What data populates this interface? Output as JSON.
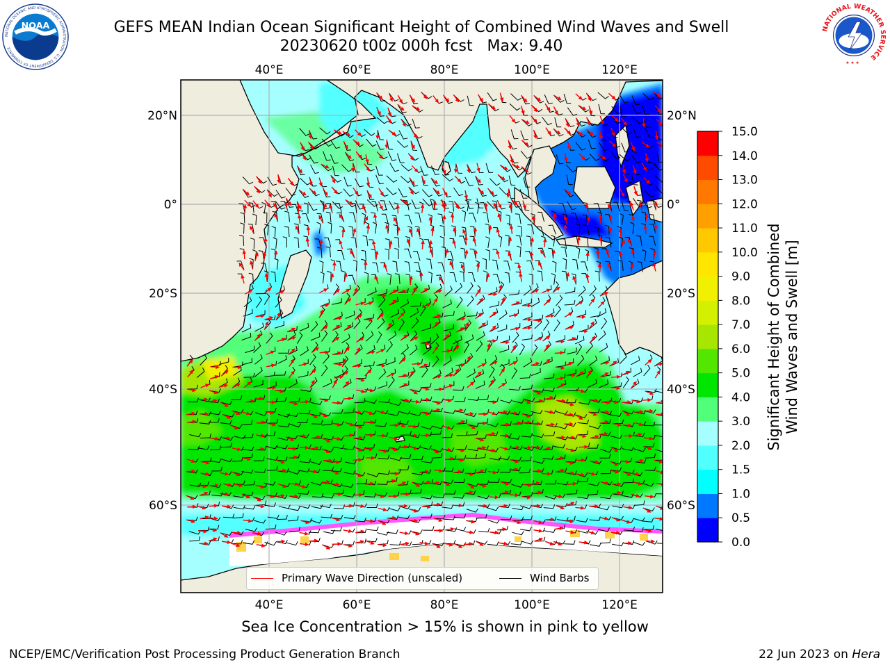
{
  "title": {
    "line1": "GEFS MEAN Indian Ocean Significant Height of Combined Wind Waves and Swell",
    "line2": "20230620 t00z 000h fcst   Max: 9.40"
  },
  "logos": {
    "noaa_text": "NOAA",
    "noaa_ring": "NATIONAL OCEANIC AND ATMOSPHERIC ADMINISTRATION · U.S. DEPARTMENT OF COMMERCE",
    "nws_ring": "NATIONAL WEATHER SERVICE"
  },
  "map": {
    "lon_labels": [
      "40°E",
      "60°E",
      "80°E",
      "100°E",
      "120°E"
    ],
    "lat_labels": [
      "20°N",
      "0°",
      "20°S",
      "40°S",
      "60°S"
    ],
    "colors": {
      "land": "#efedde",
      "ice_pink": "#ff55ff",
      "ice_yellow": "#ffd24a",
      "ice_white": "#ffffff",
      "wave_arrow": "#ff0000",
      "wind_barb": "#000000"
    }
  },
  "colorbar": {
    "label_line1": "Significant Height of Combined",
    "label_line2": "Wind Waves and Swell [m]",
    "ticks": [
      "0.0",
      "0.5",
      "1.0",
      "1.5",
      "2.0",
      "3.0",
      "4.0",
      "5.0",
      "6.0",
      "7.0",
      "8.0",
      "9.0",
      "10.0",
      "11.0",
      "12.0",
      "13.0",
      "14.0",
      "15.0"
    ],
    "colors": [
      "#0000ff",
      "#0078ff",
      "#00ffff",
      "#52ffff",
      "#a6ffff",
      "#52ff7a",
      "#00e600",
      "#52e600",
      "#a6e600",
      "#d2f000",
      "#f0f000",
      "#ffe600",
      "#ffc800",
      "#ffa000",
      "#ff7800",
      "#ff4b00",
      "#ff0000"
    ]
  },
  "legend": {
    "wave_label": "Primary Wave Direction (unscaled)",
    "wind_label": "Wind Barbs"
  },
  "caption": "Sea Ice Concentration > 15% is shown in pink to yellow",
  "footer": {
    "left": "NCEP/EMC/Verification Post Processing Product Generation Branch",
    "date": "22 Jun 2023 on ",
    "host": "Hera"
  }
}
